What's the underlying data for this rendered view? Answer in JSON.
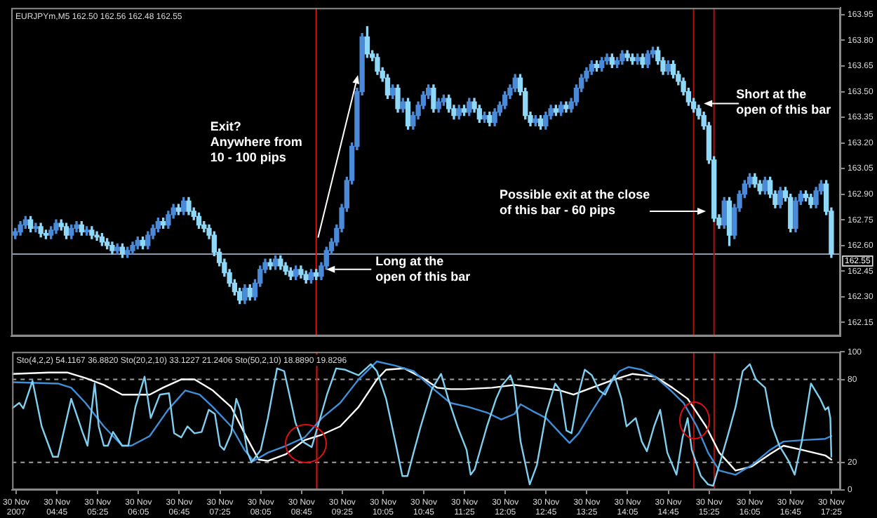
{
  "chart_data": [
    {
      "type": "candlestick",
      "title": "EURJPYm,M5 162.50 162.56 162.48 162.55",
      "x": [
        "2007-11-30T04:05",
        "2007-11-30T04:10",
        "2007-11-30T04:15",
        "2007-11-30T04:20",
        "2007-11-30T04:25",
        "2007-11-30T04:30",
        "2007-11-30T04:35",
        "2007-11-30T04:40",
        "2007-11-30T04:45",
        "2007-11-30T04:50",
        "2007-11-30T04:55",
        "2007-11-30T05:00",
        "2007-11-30T05:05",
        "2007-11-30T05:10",
        "2007-11-30T05:15",
        "2007-11-30T05:20",
        "2007-11-30T05:25",
        "2007-11-30T05:30",
        "2007-11-30T05:35",
        "2007-11-30T05:40",
        "2007-11-30T05:45",
        "2007-11-30T05:50",
        "2007-11-30T05:55",
        "2007-11-30T06:00",
        "2007-11-30T06:05",
        "2007-11-30T06:10",
        "2007-11-30T06:15",
        "2007-11-30T06:20",
        "2007-11-30T06:25",
        "2007-11-30T06:30",
        "2007-11-30T06:35",
        "2007-11-30T06:40",
        "2007-11-30T06:45",
        "2007-11-30T06:50",
        "2007-11-30T06:55",
        "2007-11-30T07:00",
        "2007-11-30T07:05",
        "2007-11-30T07:10",
        "2007-11-30T07:15",
        "2007-11-30T07:20",
        "2007-11-30T07:25",
        "2007-11-30T07:30",
        "2007-11-30T07:35",
        "2007-11-30T07:40",
        "2007-11-30T07:45",
        "2007-11-30T07:50",
        "2007-11-30T07:55",
        "2007-11-30T08:00",
        "2007-11-30T08:05",
        "2007-11-30T08:10",
        "2007-11-30T08:15",
        "2007-11-30T08:20",
        "2007-11-30T08:25",
        "2007-11-30T08:30",
        "2007-11-30T08:35",
        "2007-11-30T08:40",
        "2007-11-30T08:45",
        "2007-11-30T08:50",
        "2007-11-30T08:55",
        "2007-11-30T09:00",
        "2007-11-30T09:05",
        "2007-11-30T09:10",
        "2007-11-30T09:15",
        "2007-11-30T09:20",
        "2007-11-30T09:25",
        "2007-11-30T09:30",
        "2007-11-30T09:35",
        "2007-11-30T09:40",
        "2007-11-30T09:45",
        "2007-11-30T09:50",
        "2007-11-30T09:55",
        "2007-11-30T10:00",
        "2007-11-30T10:05",
        "2007-11-30T10:10",
        "2007-11-30T10:15",
        "2007-11-30T10:20",
        "2007-11-30T10:25",
        "2007-11-30T10:30",
        "2007-11-30T10:35",
        "2007-11-30T10:40",
        "2007-11-30T10:45",
        "2007-11-30T10:50",
        "2007-11-30T10:55",
        "2007-11-30T11:00",
        "2007-11-30T11:05",
        "2007-11-30T11:10",
        "2007-11-30T11:15",
        "2007-11-30T11:20",
        "2007-11-30T11:25",
        "2007-11-30T11:30",
        "2007-11-30T11:35",
        "2007-11-30T11:40",
        "2007-11-30T11:45",
        "2007-11-30T11:50",
        "2007-11-30T11:55",
        "2007-11-30T12:00",
        "2007-11-30T12:05",
        "2007-11-30T12:10",
        "2007-11-30T12:15",
        "2007-11-30T12:20",
        "2007-11-30T12:25",
        "2007-11-30T12:30",
        "2007-11-30T12:35",
        "2007-11-30T12:40",
        "2007-11-30T12:45",
        "2007-11-30T12:50",
        "2007-11-30T12:55",
        "2007-11-30T13:00",
        "2007-11-30T13:05",
        "2007-11-30T13:10",
        "2007-11-30T13:15",
        "2007-11-30T13:20",
        "2007-11-30T13:25",
        "2007-11-30T13:30",
        "2007-11-30T13:35",
        "2007-11-30T13:40",
        "2007-11-30T13:45",
        "2007-11-30T13:50",
        "2007-11-30T13:55",
        "2007-11-30T14:00",
        "2007-11-30T14:05",
        "2007-11-30T14:10",
        "2007-11-30T14:15",
        "2007-11-30T14:20",
        "2007-11-30T14:25",
        "2007-11-30T14:30",
        "2007-11-30T14:35",
        "2007-11-30T14:40",
        "2007-11-30T14:45",
        "2007-11-30T14:50",
        "2007-11-30T14:55",
        "2007-11-30T15:00",
        "2007-11-30T15:05",
        "2007-11-30T15:10",
        "2007-11-30T15:15",
        "2007-11-30T15:20",
        "2007-11-30T15:25",
        "2007-11-30T15:30",
        "2007-11-30T15:35",
        "2007-11-30T15:40",
        "2007-11-30T15:45",
        "2007-11-30T15:50",
        "2007-11-30T15:55",
        "2007-11-30T16:00",
        "2007-11-30T16:05",
        "2007-11-30T16:10",
        "2007-11-30T16:15",
        "2007-11-30T16:20",
        "2007-11-30T16:25",
        "2007-11-30T16:30",
        "2007-11-30T16:35",
        "2007-11-30T16:40",
        "2007-11-30T16:45",
        "2007-11-30T16:50",
        "2007-11-30T16:55",
        "2007-11-30T17:00",
        "2007-11-30T17:05",
        "2007-11-30T17:10",
        "2007-11-30T17:15",
        "2007-11-30T17:20",
        "2007-11-30T17:25"
      ],
      "ohlc": [
        [
          162.66,
          162.7,
          162.64,
          162.68
        ],
        [
          162.68,
          162.74,
          162.66,
          162.72
        ],
        [
          162.72,
          162.77,
          162.7,
          162.75
        ],
        [
          162.75,
          162.77,
          162.68,
          162.7
        ],
        [
          162.7,
          162.73,
          162.68,
          162.71
        ],
        [
          162.71,
          162.73,
          162.65,
          162.67
        ],
        [
          162.67,
          162.69,
          162.64,
          162.66
        ],
        [
          162.66,
          162.71,
          162.64,
          162.69
        ],
        [
          162.69,
          162.75,
          162.67,
          162.73
        ],
        [
          162.73,
          162.75,
          162.69,
          162.71
        ],
        [
          162.71,
          162.73,
          162.64,
          162.66
        ],
        [
          162.66,
          162.72,
          162.64,
          162.7
        ],
        [
          162.7,
          162.74,
          162.68,
          162.72
        ],
        [
          162.72,
          162.74,
          162.66,
          162.68
        ],
        [
          162.68,
          162.71,
          162.66,
          162.69
        ],
        [
          162.69,
          162.71,
          162.64,
          162.66
        ],
        [
          162.66,
          162.68,
          162.63,
          162.65
        ],
        [
          162.65,
          162.67,
          162.6,
          162.62
        ],
        [
          162.62,
          162.64,
          162.58,
          162.6
        ],
        [
          162.6,
          162.62,
          162.55,
          162.57
        ],
        [
          162.57,
          162.61,
          162.55,
          162.59
        ],
        [
          162.59,
          162.61,
          162.53,
          162.55
        ],
        [
          162.55,
          162.59,
          162.53,
          162.57
        ],
        [
          162.57,
          162.62,
          162.55,
          162.6
        ],
        [
          162.6,
          162.65,
          162.58,
          162.63
        ],
        [
          162.63,
          162.65,
          162.58,
          162.6
        ],
        [
          162.6,
          162.68,
          162.58,
          162.66
        ],
        [
          162.66,
          162.72,
          162.64,
          162.7
        ],
        [
          162.7,
          162.76,
          162.68,
          162.74
        ],
        [
          162.74,
          162.76,
          162.7,
          162.72
        ],
        [
          162.72,
          162.8,
          162.7,
          162.78
        ],
        [
          162.78,
          162.84,
          162.76,
          162.82
        ],
        [
          162.82,
          162.84,
          162.78,
          162.8
        ],
        [
          162.8,
          162.88,
          162.78,
          162.86
        ],
        [
          162.86,
          162.88,
          162.78,
          162.8
        ],
        [
          162.8,
          162.82,
          162.75,
          162.77
        ],
        [
          162.77,
          162.79,
          162.7,
          162.72
        ],
        [
          162.72,
          162.74,
          162.68,
          162.7
        ],
        [
          162.7,
          162.72,
          162.64,
          162.66
        ],
        [
          162.66,
          162.68,
          162.54,
          162.56
        ],
        [
          162.56,
          162.58,
          162.48,
          162.5
        ],
        [
          162.5,
          162.52,
          162.42,
          162.44
        ],
        [
          162.44,
          162.46,
          162.36,
          162.38
        ],
        [
          162.38,
          162.4,
          162.31,
          162.33
        ],
        [
          162.33,
          162.35,
          162.26,
          162.28
        ],
        [
          162.28,
          162.37,
          162.26,
          162.35
        ],
        [
          162.35,
          162.37,
          162.28,
          162.3
        ],
        [
          162.3,
          162.4,
          162.28,
          162.38
        ],
        [
          162.38,
          162.48,
          162.36,
          162.46
        ],
        [
          162.46,
          162.52,
          162.44,
          162.5
        ],
        [
          162.5,
          162.52,
          162.46,
          162.48
        ],
        [
          162.48,
          162.54,
          162.46,
          162.52
        ],
        [
          162.52,
          162.54,
          162.46,
          162.48
        ],
        [
          162.48,
          162.5,
          162.43,
          162.45
        ],
        [
          162.45,
          162.47,
          162.4,
          162.42
        ],
        [
          162.42,
          162.48,
          162.4,
          162.46
        ],
        [
          162.46,
          162.48,
          162.41,
          162.43
        ],
        [
          162.43,
          162.45,
          162.38,
          162.4
        ],
        [
          162.4,
          162.46,
          162.38,
          162.44
        ],
        [
          162.44,
          162.46,
          162.4,
          162.42
        ],
        [
          162.42,
          162.5,
          162.4,
          162.48
        ],
        [
          162.48,
          162.59,
          162.46,
          162.57
        ],
        [
          162.57,
          162.64,
          162.55,
          162.62
        ],
        [
          162.62,
          162.72,
          162.6,
          162.7
        ],
        [
          162.7,
          162.84,
          162.68,
          162.82
        ],
        [
          162.82,
          163.0,
          162.8,
          162.98
        ],
        [
          162.98,
          163.2,
          162.96,
          163.18
        ],
        [
          163.18,
          163.52,
          163.16,
          163.5
        ],
        [
          163.5,
          163.84,
          163.48,
          163.82
        ],
        [
          163.82,
          163.88,
          163.7,
          163.72
        ],
        [
          163.72,
          163.74,
          163.68,
          163.7
        ],
        [
          163.7,
          163.72,
          163.6,
          163.62
        ],
        [
          163.62,
          163.64,
          163.56,
          163.58
        ],
        [
          163.58,
          163.6,
          163.46,
          163.48
        ],
        [
          163.48,
          163.54,
          163.46,
          163.52
        ],
        [
          163.52,
          163.54,
          163.38,
          163.4
        ],
        [
          163.4,
          163.46,
          163.38,
          163.44
        ],
        [
          163.44,
          163.46,
          163.28,
          163.3
        ],
        [
          163.3,
          163.38,
          163.28,
          163.36
        ],
        [
          163.36,
          163.44,
          163.34,
          163.42
        ],
        [
          163.42,
          163.5,
          163.4,
          163.48
        ],
        [
          163.48,
          163.54,
          163.46,
          163.52
        ],
        [
          163.52,
          163.54,
          163.38,
          163.4
        ],
        [
          163.4,
          163.46,
          163.38,
          163.44
        ],
        [
          163.44,
          163.48,
          163.42,
          163.46
        ],
        [
          163.46,
          163.48,
          163.38,
          163.4
        ],
        [
          163.4,
          163.42,
          163.34,
          163.36
        ],
        [
          163.36,
          163.42,
          163.34,
          163.4
        ],
        [
          163.4,
          163.42,
          163.36,
          163.38
        ],
        [
          163.38,
          163.46,
          163.36,
          163.44
        ],
        [
          163.44,
          163.46,
          163.38,
          163.4
        ],
        [
          163.4,
          163.42,
          163.32,
          163.34
        ],
        [
          163.34,
          163.38,
          163.32,
          163.36
        ],
        [
          163.36,
          163.38,
          163.3,
          163.32
        ],
        [
          163.32,
          163.4,
          163.3,
          163.38
        ],
        [
          163.38,
          163.44,
          163.36,
          163.42
        ],
        [
          163.42,
          163.5,
          163.4,
          163.48
        ],
        [
          163.48,
          163.54,
          163.46,
          163.52
        ],
        [
          163.52,
          163.6,
          163.5,
          163.58
        ],
        [
          163.58,
          163.6,
          163.48,
          163.5
        ],
        [
          163.5,
          163.52,
          163.34,
          163.36
        ],
        [
          163.36,
          163.38,
          163.3,
          163.32
        ],
        [
          163.32,
          163.36,
          163.3,
          163.34
        ],
        [
          163.34,
          163.36,
          163.28,
          163.3
        ],
        [
          163.3,
          163.38,
          163.28,
          163.36
        ],
        [
          163.36,
          163.42,
          163.34,
          163.4
        ],
        [
          163.4,
          163.42,
          163.36,
          163.38
        ],
        [
          163.38,
          163.44,
          163.36,
          163.42
        ],
        [
          163.42,
          163.44,
          163.38,
          163.4
        ],
        [
          163.4,
          163.46,
          163.38,
          163.44
        ],
        [
          163.44,
          163.54,
          163.42,
          163.52
        ],
        [
          163.52,
          163.6,
          163.5,
          163.58
        ],
        [
          163.58,
          163.64,
          163.56,
          163.62
        ],
        [
          163.62,
          163.68,
          163.6,
          163.66
        ],
        [
          163.66,
          163.68,
          163.62,
          163.64
        ],
        [
          163.64,
          163.7,
          163.62,
          163.68
        ],
        [
          163.68,
          163.72,
          163.66,
          163.7
        ],
        [
          163.7,
          163.72,
          163.64,
          163.66
        ],
        [
          163.66,
          163.7,
          163.64,
          163.68
        ],
        [
          163.68,
          163.74,
          163.66,
          163.72
        ],
        [
          163.72,
          163.74,
          163.68,
          163.7
        ],
        [
          163.7,
          163.72,
          163.66,
          163.68
        ],
        [
          163.68,
          163.72,
          163.66,
          163.7
        ],
        [
          163.7,
          163.72,
          163.64,
          163.66
        ],
        [
          163.66,
          163.74,
          163.64,
          163.72
        ],
        [
          163.72,
          163.76,
          163.7,
          163.74
        ],
        [
          163.74,
          163.76,
          163.66,
          163.68
        ],
        [
          163.68,
          163.7,
          163.6,
          163.62
        ],
        [
          163.62,
          163.68,
          163.6,
          163.66
        ],
        [
          163.66,
          163.68,
          163.58,
          163.6
        ],
        [
          163.6,
          163.62,
          163.54,
          163.56
        ],
        [
          163.56,
          163.58,
          163.48,
          163.5
        ],
        [
          163.5,
          163.52,
          163.42,
          163.44
        ],
        [
          163.44,
          163.46,
          163.38,
          163.4
        ],
        [
          163.4,
          163.42,
          163.34,
          163.36
        ],
        [
          163.36,
          163.38,
          163.28,
          163.3
        ],
        [
          163.3,
          163.32,
          163.08,
          163.1
        ],
        [
          163.1,
          163.12,
          162.74,
          162.76
        ],
        [
          162.76,
          162.78,
          162.7,
          162.72
        ],
        [
          162.72,
          162.88,
          162.7,
          162.86
        ],
        [
          162.86,
          162.88,
          162.6,
          162.66
        ],
        [
          162.66,
          162.84,
          162.64,
          162.82
        ],
        [
          162.82,
          162.92,
          162.8,
          162.9
        ],
        [
          162.9,
          162.98,
          162.88,
          162.96
        ],
        [
          162.96,
          163.02,
          162.94,
          163.0
        ],
        [
          163.0,
          163.02,
          162.94,
          162.96
        ],
        [
          162.96,
          162.98,
          162.9,
          162.92
        ],
        [
          162.92,
          163.0,
          162.9,
          162.98
        ],
        [
          162.98,
          163.0,
          162.88,
          162.9
        ],
        [
          162.9,
          162.92,
          162.82,
          162.84
        ],
        [
          162.84,
          162.94,
          162.82,
          162.92
        ],
        [
          162.92,
          162.94,
          162.86,
          162.88
        ],
        [
          162.88,
          162.9,
          162.68,
          162.7
        ],
        [
          162.7,
          162.88,
          162.68,
          162.86
        ],
        [
          162.86,
          162.92,
          162.84,
          162.9
        ],
        [
          162.9,
          162.92,
          162.86,
          162.88
        ],
        [
          162.88,
          162.9,
          162.82,
          162.84
        ],
        [
          162.84,
          162.94,
          162.82,
          162.92
        ],
        [
          162.92,
          162.98,
          162.9,
          162.96
        ],
        [
          162.96,
          162.98,
          162.78,
          162.8
        ],
        [
          162.8,
          162.82,
          162.53,
          162.55
        ]
      ],
      "colors": [
        "#4a8ad8",
        "#4a8ad8",
        "#4a8ad8",
        "#8fd8f8",
        "#4a8ad8",
        "#8fd8f8",
        "#8fd8f8",
        "#4a8ad8",
        "#4a8ad8",
        "#8fd8f8",
        "#8fd8f8",
        "#4a8ad8",
        "#4a8ad8",
        "#8fd8f8",
        "#4a8ad8",
        "#8fd8f8",
        "#8fd8f8",
        "#8fd8f8",
        "#8fd8f8",
        "#8fd8f8",
        "#4a8ad8",
        "#8fd8f8",
        "#4a8ad8",
        "#4a8ad8",
        "#4a8ad8",
        "#8fd8f8",
        "#4a8ad8",
        "#4a8ad8",
        "#4a8ad8",
        "#8fd8f8",
        "#4a8ad8",
        "#4a8ad8",
        "#8fd8f8",
        "#4a8ad8",
        "#8fd8f8",
        "#8fd8f8",
        "#8fd8f8",
        "#8fd8f8",
        "#8fd8f8",
        "#8fd8f8",
        "#8fd8f8",
        "#8fd8f8",
        "#8fd8f8",
        "#8fd8f8",
        "#8fd8f8",
        "#4a8ad8",
        "#8fd8f8",
        "#4a8ad8",
        "#4a8ad8",
        "#4a8ad8",
        "#8fd8f8",
        "#4a8ad8",
        "#8fd8f8",
        "#8fd8f8",
        "#8fd8f8",
        "#4a8ad8",
        "#8fd8f8",
        "#8fd8f8",
        "#4a8ad8",
        "#8fd8f8",
        "#4a8ad8",
        "#4a8ad8",
        "#4a8ad8",
        "#4a8ad8",
        "#4a8ad8",
        "#4a8ad8",
        "#4a8ad8",
        "#4a8ad8",
        "#4a8ad8",
        "#8fd8f8",
        "#8fd8f8",
        "#8fd8f8",
        "#8fd8f8",
        "#8fd8f8",
        "#4a8ad8",
        "#8fd8f8",
        "#4a8ad8",
        "#8fd8f8",
        "#4a8ad8",
        "#4a8ad8",
        "#4a8ad8",
        "#4a8ad8",
        "#8fd8f8",
        "#4a8ad8",
        "#4a8ad8",
        "#8fd8f8",
        "#8fd8f8",
        "#4a8ad8",
        "#8fd8f8",
        "#4a8ad8",
        "#8fd8f8",
        "#8fd8f8",
        "#4a8ad8",
        "#8fd8f8",
        "#4a8ad8",
        "#4a8ad8",
        "#4a8ad8",
        "#4a8ad8",
        "#4a8ad8",
        "#8fd8f8",
        "#8fd8f8",
        "#8fd8f8",
        "#4a8ad8",
        "#8fd8f8",
        "#4a8ad8",
        "#4a8ad8",
        "#8fd8f8",
        "#4a8ad8",
        "#8fd8f8",
        "#4a8ad8",
        "#4a8ad8",
        "#4a8ad8",
        "#4a8ad8",
        "#4a8ad8",
        "#8fd8f8",
        "#4a8ad8",
        "#4a8ad8",
        "#8fd8f8",
        "#4a8ad8",
        "#4a8ad8",
        "#8fd8f8",
        "#8fd8f8",
        "#4a8ad8",
        "#8fd8f8",
        "#4a8ad8",
        "#4a8ad8",
        "#8fd8f8",
        "#8fd8f8",
        "#4a8ad8",
        "#8fd8f8",
        "#8fd8f8",
        "#8fd8f8",
        "#8fd8f8",
        "#8fd8f8",
        "#8fd8f8",
        "#8fd8f8",
        "#8fd8f8",
        "#8fd8f8",
        "#8fd8f8",
        "#4a8ad8",
        "#8fd8f8",
        "#4a8ad8",
        "#4a8ad8",
        "#4a8ad8",
        "#4a8ad8",
        "#8fd8f8",
        "#8fd8f8",
        "#4a8ad8",
        "#8fd8f8",
        "#8fd8f8",
        "#4a8ad8",
        "#8fd8f8",
        "#8fd8f8",
        "#4a8ad8",
        "#4a8ad8",
        "#8fd8f8",
        "#8fd8f8",
        "#4a8ad8",
        "#4a8ad8",
        "#8fd8f8",
        "#8fd8f8"
      ],
      "xlim": [
        "2007-11-30T04:01",
        "2007-11-30T17:34"
      ],
      "ylim": [
        162.07,
        163.99
      ],
      "yticks": [
        162.15,
        {
          "value": 162.3,
          "label": "162.30"
        },
        162.45,
        {
          "value": 162.6,
          "label": "162.60"
        },
        162.75,
        {
          "value": 162.9,
          "label": "162.90"
        },
        163.05,
        {
          "value": 163.2,
          "label": "163.20"
        },
        163.35,
        {
          "value": 163.5,
          "label": "163.50"
        },
        163.65,
        {
          "value": 163.8,
          "label": "163.80"
        },
        163.95
      ],
      "tick_labels": "y",
      "ref_lines": [
        {
          "axis": "y",
          "value": 162.55,
          "label": "162.55",
          "color": "#8a9ab0"
        },
        {
          "axis": "x",
          "value": "2007-11-30T09:00",
          "color": "#e01010"
        },
        {
          "axis": "x",
          "value": "2007-11-30T15:10",
          "color": "#b01010"
        },
        {
          "axis": "x",
          "value": "2007-11-30T15:30",
          "color": "#b01010"
        }
      ],
      "annotations": [
        "Exit?\nAnywhere from\n10 - 100 pips",
        {
          "text": "Long at the\nopen of this bar",
          "x": "2007-11-30T09:10",
          "y": 162.46
        },
        {
          "text": "Short at the\nopen of this bar",
          "x": "2007-11-30T15:20",
          "y": 163.43
        },
        {
          "text": "Possible exit at the close\nof this bar - 60 pips",
          "x": "2007-11-30T15:22",
          "y": 162.8
        }
      ]
    },
    {
      "type": "line",
      "title": "Sto(4,2,2) 54.1167 36.8820 Sto(20,2,10) 33.1227 21.2406 Sto(50,2,10) 18.8890 19.8296",
      "series": [
        {
          "color": "#7fd0f0",
          "x": [
            "2007-11-30T04:01",
            "2007-11-30T04:08",
            "2007-11-30T04:12",
            "2007-11-30T04:21",
            "2007-11-30T04:30",
            "2007-11-30T04:41",
            "2007-11-30T04:46",
            "2007-11-30T04:59",
            "2007-11-30T05:10",
            "2007-11-30T05:15",
            "2007-11-30T05:22",
            "2007-11-30T05:26",
            "2007-11-30T05:31",
            "2007-11-30T05:35",
            "2007-11-30T05:40",
            "2007-11-30T05:49",
            "2007-11-30T05:55",
            "2007-11-30T06:02",
            "2007-11-30T06:11",
            "2007-11-30T06:17",
            "2007-11-30T06:26",
            "2007-11-30T06:35",
            "2007-11-30T06:40",
            "2007-11-30T06:47",
            "2007-11-30T06:53",
            "2007-11-30T07:00",
            "2007-11-30T07:07",
            "2007-11-30T07:14",
            "2007-11-30T07:20",
            "2007-11-30T07:25",
            "2007-11-30T07:29",
            "2007-11-30T07:36",
            "2007-11-30T07:41",
            "2007-11-30T07:45",
            "2007-11-30T07:52",
            "2007-11-30T07:56",
            "2007-11-30T08:01",
            "2007-11-30T08:05",
            "2007-11-30T08:12",
            "2007-11-30T08:21",
            "2007-11-30T08:28",
            "2007-11-30T08:34",
            "2007-11-30T08:39",
            "2007-11-30T08:46",
            "2007-11-30T08:55",
            "2007-11-30T09:01",
            "2007-11-30T09:10",
            "2007-11-30T09:19",
            "2007-11-30T09:28",
            "2007-11-30T09:41",
            "2007-11-30T09:53",
            "2007-11-30T09:59",
            "2007-11-30T10:08",
            "2007-11-30T10:17",
            "2007-11-30T10:24",
            "2007-11-30T10:29",
            "2007-11-30T10:35",
            "2007-11-30T10:42",
            "2007-11-30T10:53",
            "2007-11-30T11:02",
            "2007-11-30T11:09",
            "2007-11-30T11:18",
            "2007-11-30T11:27",
            "2007-11-30T11:31",
            "2007-11-30T11:35",
            "2007-11-30T11:47",
            "2007-11-30T11:56",
            "2007-11-30T12:02",
            "2007-11-30T12:10",
            "2007-11-30T12:14",
            "2007-11-30T12:20",
            "2007-11-30T12:29",
            "2007-11-30T12:36",
            "2007-11-30T12:45",
            "2007-11-30T12:54",
            "2007-11-30T12:59",
            "2007-11-30T13:05",
            "2007-11-30T13:10",
            "2007-11-30T13:17",
            "2007-11-30T13:23",
            "2007-11-30T13:30",
            "2007-11-30T13:37",
            "2007-11-30T13:43",
            "2007-11-30T13:52",
            "2007-11-30T13:59",
            "2007-11-30T14:04",
            "2007-11-30T14:13",
            "2007-11-30T14:19",
            "2007-11-30T14:24",
            "2007-11-30T14:31",
            "2007-11-30T14:37",
            "2007-11-30T14:44",
            "2007-11-30T14:53",
            "2007-11-30T14:59",
            "2007-11-30T15:04",
            "2007-11-30T15:08",
            "2007-11-30T15:17",
            "2007-11-30T15:24",
            "2007-11-30T15:29",
            "2007-11-30T15:35",
            "2007-11-30T15:44",
            "2007-11-30T15:51",
            "2007-11-30T15:58",
            "2007-11-30T16:05",
            "2007-11-30T16:11",
            "2007-11-30T16:20",
            "2007-11-30T16:27",
            "2007-11-30T16:34",
            "2007-11-30T16:43",
            "2007-11-30T16:49",
            "2007-11-30T16:56",
            "2007-11-30T17:05",
            "2007-11-30T17:14",
            "2007-11-30T17:19",
            "2007-11-30T17:22",
            "2007-11-30T17:24",
            "2007-11-30T17:25"
          ],
          "values": [
            59,
            63,
            59,
            79,
            46,
            24,
            24,
            66,
            42,
            32,
            77,
            46,
            32,
            32,
            42,
            32,
            32,
            60,
            82,
            52,
            69,
            70,
            41,
            38,
            46,
            41,
            42,
            58,
            55,
            32,
            29,
            41,
            66,
            58,
            27,
            20,
            25,
            29,
            52,
            88,
            86,
            66,
            49,
            35,
            31,
            46,
            69,
            88,
            87,
            83,
            91,
            86,
            66,
            35,
            10,
            10,
            27,
            46,
            73,
            84,
            66,
            46,
            29,
            11,
            15,
            46,
            66,
            76,
            83,
            74,
            35,
            4,
            18,
            55,
            77,
            72,
            43,
            41,
            70,
            87,
            83,
            72,
            69,
            83,
            66,
            46,
            52,
            35,
            28,
            46,
            58,
            27,
            11,
            38,
            52,
            29,
            10,
            4,
            3,
            18,
            41,
            60,
            86,
            91,
            80,
            74,
            46,
            32,
            21,
            11,
            35,
            77,
            66,
            58,
            60,
            52,
            24
          ]
        },
        {
          "color": "#3f8fd8",
          "x": [
            "2007-11-30T04:01",
            "2007-11-30T04:46",
            "2007-11-30T04:59",
            "2007-11-30T05:13",
            "2007-11-30T05:31",
            "2007-11-30T05:49",
            "2007-11-30T05:58",
            "2007-11-30T06:16",
            "2007-11-30T06:34",
            "2007-11-30T06:51",
            "2007-11-30T07:05",
            "2007-11-30T07:18",
            "2007-11-30T07:36",
            "2007-11-30T07:49",
            "2007-11-30T07:58",
            "2007-11-30T08:12",
            "2007-11-30T08:30",
            "2007-11-30T08:48",
            "2007-11-30T09:05",
            "2007-11-30T09:23",
            "2007-11-30T09:41",
            "2007-11-30T09:59",
            "2007-11-30T10:17",
            "2007-11-30T10:35",
            "2007-11-30T10:53",
            "2007-11-30T11:11",
            "2007-11-30T11:29",
            "2007-11-30T11:47",
            "2007-11-30T12:01",
            "2007-11-30T12:14",
            "2007-11-30T12:20",
            "2007-11-30T12:32",
            "2007-11-30T12:45",
            "2007-11-30T12:59",
            "2007-11-30T13:08",
            "2007-11-30T13:17",
            "2007-11-30T13:30",
            "2007-11-30T13:43",
            "2007-11-30T13:57",
            "2007-11-30T14:06",
            "2007-11-30T14:19",
            "2007-11-30T14:32",
            "2007-11-30T14:46",
            "2007-11-30T15:00",
            "2007-11-30T15:13",
            "2007-11-30T15:24",
            "2007-11-30T15:35",
            "2007-11-30T15:51",
            "2007-11-30T16:07",
            "2007-11-30T16:25",
            "2007-11-30T16:38",
            "2007-11-30T16:56",
            "2007-11-30T17:19",
            "2007-11-30T17:25"
          ],
          "values": [
            78,
            77,
            74,
            63,
            46,
            32,
            32,
            39,
            58,
            72,
            69,
            60,
            46,
            29,
            21,
            27,
            32,
            38,
            52,
            63,
            80,
            93,
            90,
            86,
            74,
            63,
            60,
            56,
            51,
            55,
            62,
            57,
            52,
            41,
            34,
            41,
            57,
            72,
            86,
            89,
            87,
            82,
            73,
            63,
            46,
            27,
            14,
            11,
            18,
            29,
            35,
            36,
            37,
            39
          ]
        },
        {
          "color": "#ffffff",
          "x": [
            "2007-11-30T04:01",
            "2007-11-30T04:37",
            "2007-11-30T04:55",
            "2007-11-30T05:13",
            "2007-11-30T05:31",
            "2007-11-30T05:49",
            "2007-11-30T06:16",
            "2007-11-30T06:29",
            "2007-11-30T06:47",
            "2007-11-30T07:00",
            "2007-11-30T07:18",
            "2007-11-30T07:36",
            "2007-11-30T07:49",
            "2007-11-30T08:03",
            "2007-11-30T08:12",
            "2007-11-30T08:30",
            "2007-11-30T08:48",
            "2007-11-30T09:05",
            "2007-11-30T09:23",
            "2007-11-30T09:41",
            "2007-11-30T09:59",
            "2007-11-30T10:08",
            "2007-11-30T10:26",
            "2007-11-30T10:44",
            "2007-11-30T10:58",
            "2007-11-30T11:11",
            "2007-11-30T11:25",
            "2007-11-30T11:52",
            "2007-11-30T12:14",
            "2007-11-30T12:36",
            "2007-11-30T12:59",
            "2007-11-30T13:12",
            "2007-11-30T13:30",
            "2007-11-30T13:52",
            "2007-11-30T14:10",
            "2007-11-30T14:32",
            "2007-11-30T14:49",
            "2007-11-30T15:04",
            "2007-11-30T15:22",
            "2007-11-30T15:35",
            "2007-11-30T15:51",
            "2007-11-30T16:07",
            "2007-11-30T16:25",
            "2007-11-30T16:38",
            "2007-11-30T16:56",
            "2007-11-30T17:19",
            "2007-11-30T17:25"
          ],
          "values": [
            84,
            85,
            85,
            81,
            76,
            69,
            69,
            74,
            80,
            80,
            72,
            60,
            41,
            22,
            21,
            26,
            36,
            40,
            46,
            60,
            80,
            87,
            88,
            81,
            74,
            73,
            73,
            74,
            76,
            74,
            72,
            69,
            74,
            80,
            84,
            82,
            74,
            66,
            46,
            27,
            14,
            17,
            26,
            32,
            29,
            25,
            22
          ]
        }
      ],
      "xlim": [
        "2007-11-30T04:01",
        "2007-11-30T17:34"
      ],
      "ylim": [
        0,
        100
      ],
      "yticks": [
        0,
        20,
        80,
        100
      ],
      "xticks": [
        {
          "value": "2007-11-30T04:05",
          "label": "30 Nov 2007"
        },
        {
          "value": "2007-11-30T04:45",
          "label": "30 Nov 04:45"
        },
        {
          "value": "2007-11-30T05:25",
          "label": "30 Nov 05:25"
        },
        {
          "value": "2007-11-30T06:05",
          "label": "30 Nov 06:05"
        },
        {
          "value": "2007-11-30T06:45",
          "label": "30 Nov 06:45"
        },
        {
          "value": "2007-11-30T07:25",
          "label": "30 Nov 07:25"
        },
        {
          "value": "2007-11-30T08:05",
          "label": "30 Nov 08:05"
        },
        {
          "value": "2007-11-30T08:45",
          "label": "30 Nov 08:45"
        },
        {
          "value": "2007-11-30T09:25",
          "label": "30 Nov 09:25"
        },
        {
          "value": "2007-11-30T10:05",
          "label": "30 Nov 10:05"
        },
        {
          "value": "2007-11-30T10:45",
          "label": "30 Nov 10:45"
        },
        {
          "value": "2007-11-30T11:25",
          "label": "30 Nov 11:25"
        },
        {
          "value": "2007-11-30T12:05",
          "label": "30 Nov 12:05"
        },
        {
          "value": "2007-11-30T12:45",
          "label": "30 Nov 12:45"
        },
        {
          "value": "2007-11-30T13:25",
          "label": "30 Nov 13:25"
        },
        {
          "value": "2007-11-30T14:05",
          "label": "30 Nov 14:05"
        },
        {
          "value": "2007-11-30T14:45",
          "label": "30 Nov 14:45"
        },
        {
          "value": "2007-11-30T15:25",
          "label": "30 Nov 15:25"
        },
        {
          "value": "2007-11-30T16:05",
          "label": "30 Nov 16:05"
        },
        {
          "value": "2007-11-30T16:45",
          "label": "30 Nov 16:45"
        },
        {
          "value": "2007-11-30T17:25",
          "label": "30 Nov 17:25"
        }
      ],
      "marker": "none",
      "line_style": "solid",
      "ref_lines": [
        {
          "axis": "y",
          "value": 20,
          "color": "#a0a0a0",
          "line_style": "dashed"
        },
        {
          "axis": "y",
          "value": 80,
          "color": "#a0a0a0",
          "line_style": "dashed"
        },
        {
          "axis": "x",
          "value": "2007-11-30T09:00",
          "color": "#e01010"
        },
        {
          "axis": "x",
          "value": "2007-11-30T15:10",
          "color": "#b01010"
        },
        {
          "axis": "x",
          "value": "2007-11-30T15:30",
          "color": "#b01010"
        }
      ]
    }
  ]
}
